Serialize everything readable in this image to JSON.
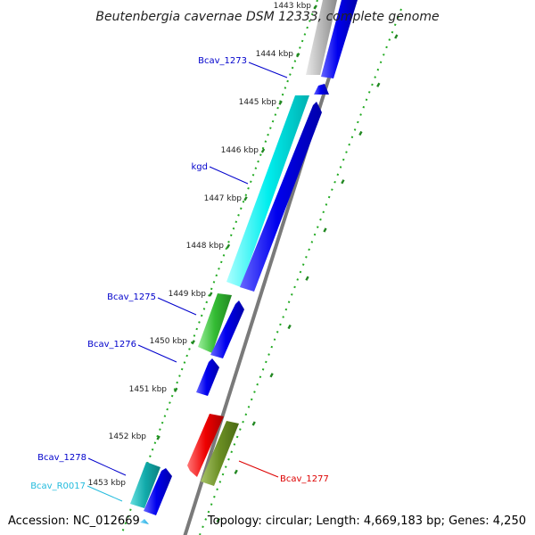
{
  "title": "Beutenbergia cavernae DSM 12333, complete genome",
  "footer": {
    "accession": "Accession: NC_012669",
    "topology": "Topology: circular; Length: 4,669,183 bp; Genes: 4,250"
  },
  "kbp_ticks": [
    "1443 kbp",
    "1444 kbp",
    "1445 kbp",
    "1446 kbp",
    "1447 kbp",
    "1448 kbp",
    "1449 kbp",
    "1450 kbp",
    "1451 kbp",
    "1452 kbp",
    "1453 kbp"
  ],
  "features": [
    {
      "name": "Bcav_1273",
      "color": "#0000cc",
      "strand": "+"
    },
    {
      "name": "kgd",
      "color": "#0000cc",
      "strand": "+"
    },
    {
      "name": "Bcav_1275",
      "color": "#0000cc",
      "strand": "+"
    },
    {
      "name": "Bcav_1276",
      "color": "#0000cc",
      "strand": "+"
    },
    {
      "name": "Bcav_1277",
      "color": "#dd0000",
      "strand": "-"
    },
    {
      "name": "Bcav_1278",
      "color": "#0000cc",
      "strand": "+"
    },
    {
      "name": "Bcav_R0017",
      "color": "#22bbdd",
      "strand": "+"
    }
  ],
  "colors": {
    "gene": "#0000dd",
    "cds_cyan": "#00e5e5",
    "cds_green": "#33bb33",
    "cds_olive": "#6b8e23",
    "cds_red": "#ee0000",
    "cds_teal": "#11aaaa",
    "cds_grey": "#b0b0b0",
    "ring": "#808080",
    "tick": "#228822"
  }
}
